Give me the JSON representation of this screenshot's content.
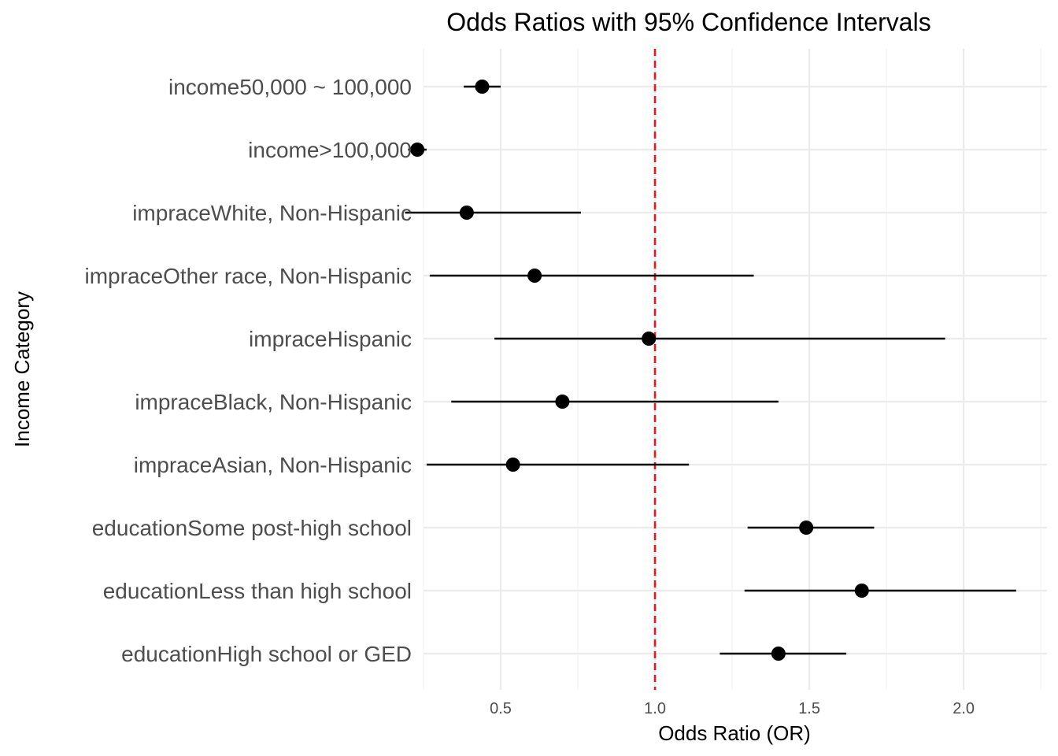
{
  "chart_data": {
    "type": "forest",
    "title": "Odds Ratios with 95% Confidence Intervals",
    "xlabel": "Odds Ratio (OR)",
    "ylabel": "Income Category",
    "xlim": [
      0.25,
      2.27
    ],
    "x_ticks": [
      0.5,
      1.0,
      1.5,
      2.0
    ],
    "x_tick_labels": [
      "0.5",
      "1.0",
      "1.5",
      "2.0"
    ],
    "reference_line": {
      "x": 1.0,
      "style": "dashed",
      "color": "#e41a1c"
    },
    "grid": true,
    "rows": [
      {
        "label": "income50,000 ~ 100,000",
        "or": 0.44,
        "lower": 0.38,
        "upper": 0.5
      },
      {
        "label": "income>100,000",
        "or": 0.23,
        "lower": 0.2,
        "upper": 0.26
      },
      {
        "label": "impraceWhite, Non-Hispanic",
        "or": 0.39,
        "lower": 0.19,
        "upper": 0.76
      },
      {
        "label": "impraceOther race, Non-Hispanic",
        "or": 0.61,
        "lower": 0.27,
        "upper": 1.32
      },
      {
        "label": "impraceHispanic",
        "or": 0.98,
        "lower": 0.48,
        "upper": 1.94
      },
      {
        "label": "impraceBlack, Non-Hispanic",
        "or": 0.7,
        "lower": 0.34,
        "upper": 1.4
      },
      {
        "label": "impraceAsian, Non-Hispanic",
        "or": 0.54,
        "lower": 0.26,
        "upper": 1.11
      },
      {
        "label": "educationSome post-high school",
        "or": 1.49,
        "lower": 1.3,
        "upper": 1.71
      },
      {
        "label": "educationLess than high school",
        "or": 1.67,
        "lower": 1.29,
        "upper": 2.17
      },
      {
        "label": "educationHigh school or GED",
        "or": 1.4,
        "lower": 1.21,
        "upper": 1.62
      }
    ],
    "colors": {
      "points": "#000000",
      "ci": "#000000",
      "reference": "#e41a1c",
      "grid": "#ebebeb"
    }
  }
}
